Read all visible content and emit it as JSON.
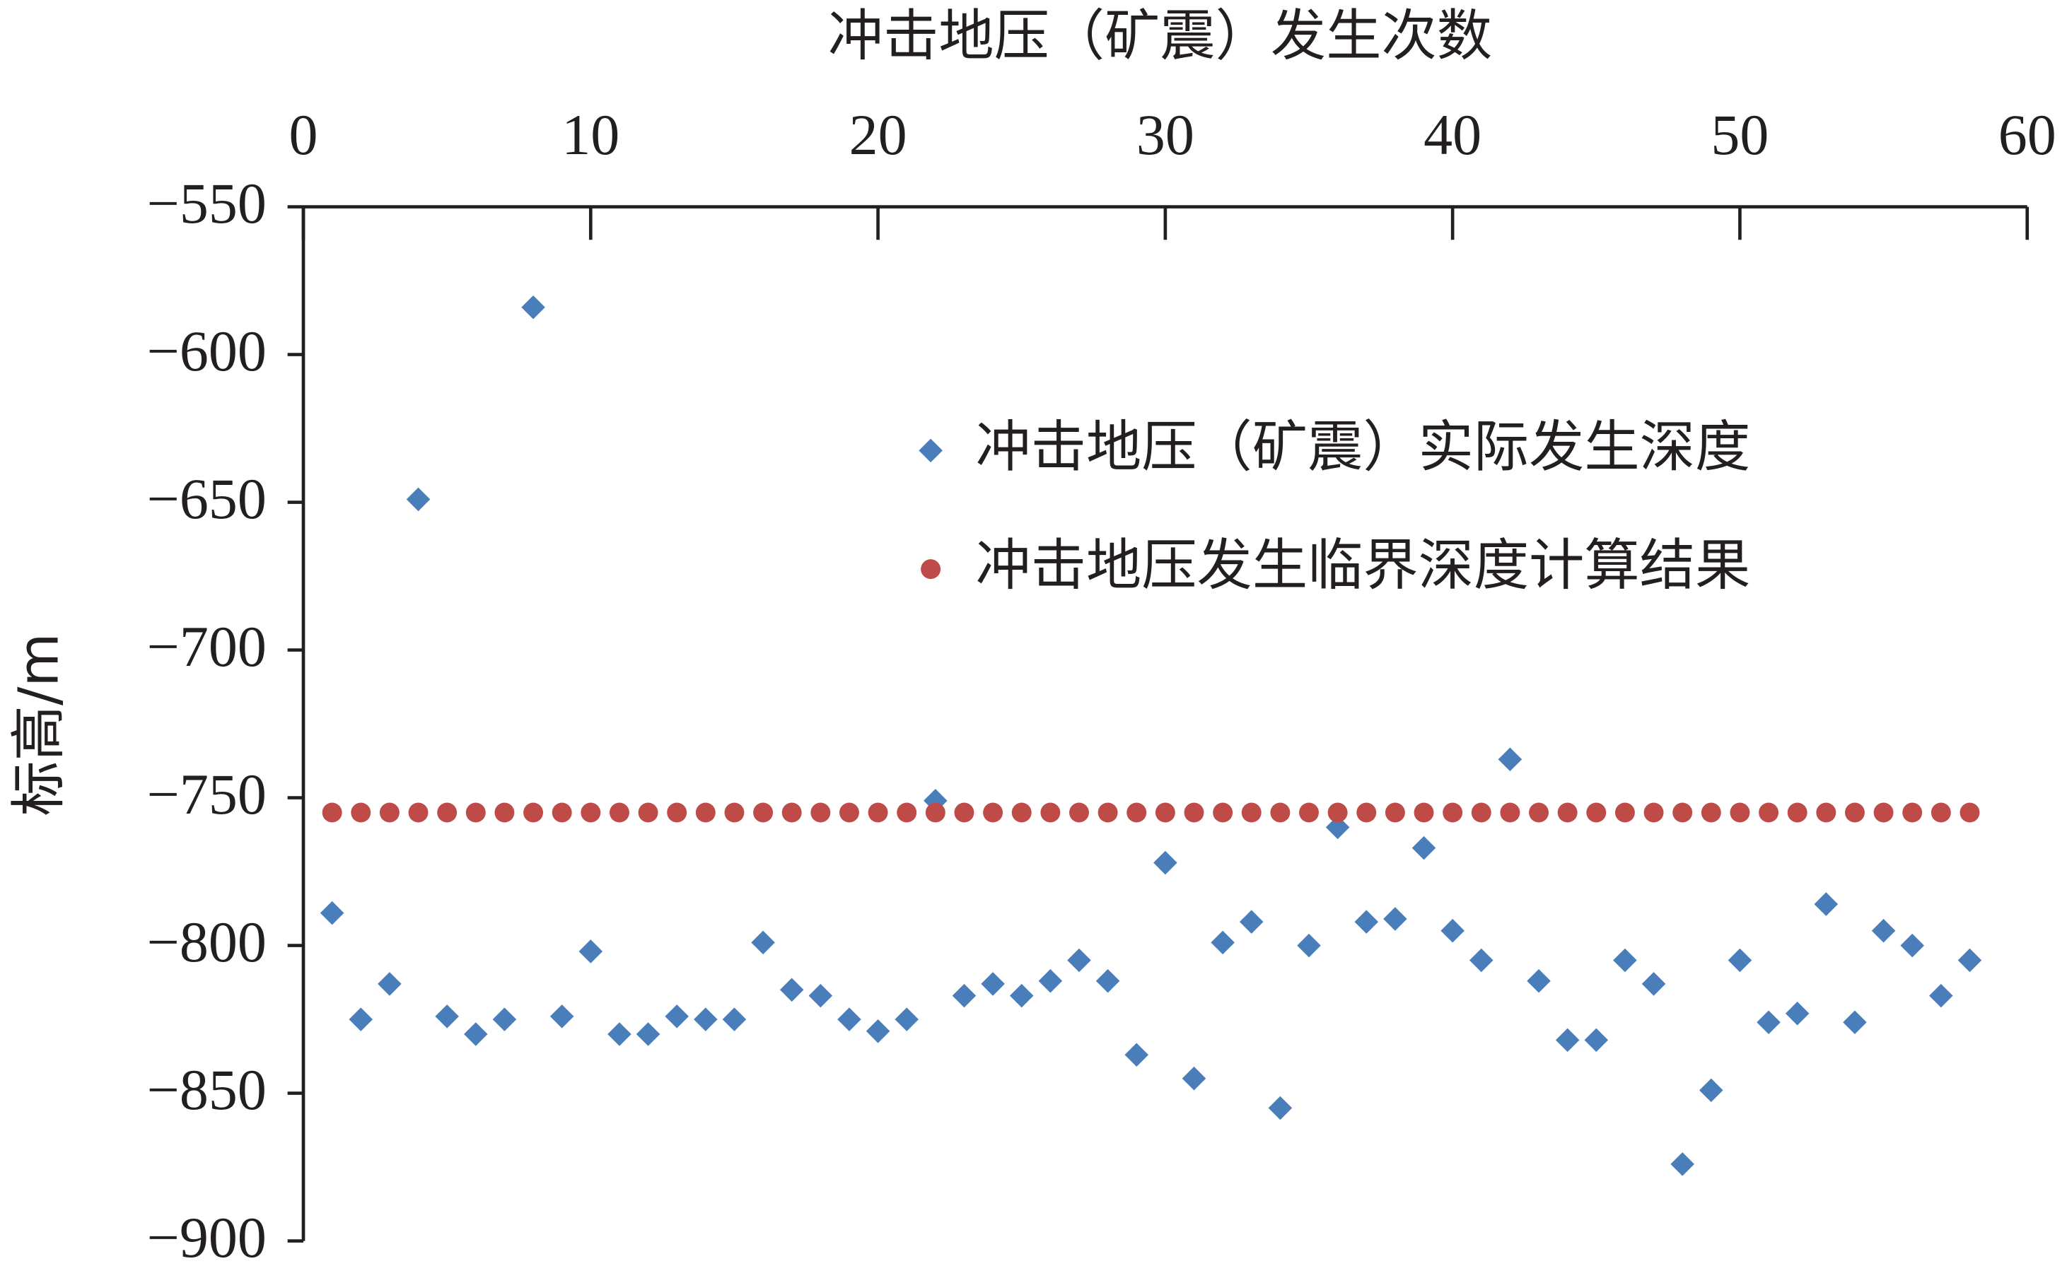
{
  "chart_data": {
    "type": "scatter",
    "title": "冲击地压（矿震）发生次数",
    "y_label": "标高/m",
    "x": [
      1,
      2,
      3,
      4,
      5,
      6,
      7,
      8,
      9,
      10,
      11,
      12,
      13,
      14,
      15,
      16,
      17,
      18,
      19,
      20,
      21,
      22,
      23,
      24,
      25,
      26,
      27,
      28,
      29,
      30,
      31,
      32,
      33,
      34,
      35,
      36,
      37,
      38,
      39,
      40,
      41,
      42,
      43,
      44,
      45,
      46,
      47,
      48,
      49,
      50,
      51,
      52,
      53,
      54,
      55,
      56,
      57,
      58
    ],
    "series": [
      {
        "name": "冲击地压（矿震）实际发生深度",
        "color": "#4a7ebb",
        "marker": "diamond",
        "values": [
          -789,
          -825,
          -813,
          -649,
          -824,
          -830,
          -825,
          -584,
          -824,
          -802,
          -830,
          -830,
          -824,
          -825,
          -825,
          -799,
          -815,
          -817,
          -825,
          -829,
          -825,
          -751,
          -817,
          -813,
          -817,
          -812,
          -805,
          -812,
          -837,
          -772,
          -845,
          -799,
          -792,
          -855,
          -800,
          -760,
          -792,
          -791,
          -767,
          -795,
          -805,
          -737,
          -812,
          -832,
          -832,
          -805,
          -813,
          -874,
          -849,
          -805,
          -826,
          -823,
          -786,
          -826,
          -795,
          -800,
          -817,
          -805
        ]
      },
      {
        "name": "冲击地压发生临界深度计算结果",
        "color": "#be4b48",
        "marker": "circle",
        "values": [
          -755,
          -755,
          -755,
          -755,
          -755,
          -755,
          -755,
          -755,
          -755,
          -755,
          -755,
          -755,
          -755,
          -755,
          -755,
          -755,
          -755,
          -755,
          -755,
          -755,
          -755,
          -755,
          -755,
          -755,
          -755,
          -755,
          -755,
          -755,
          -755,
          -755,
          -755,
          -755,
          -755,
          -755,
          -755,
          -755,
          -755,
          -755,
          -755,
          -755,
          -755,
          -755,
          -755,
          -755,
          -755,
          -755,
          -755,
          -755,
          -755,
          -755,
          -755,
          -755,
          -755,
          -755,
          -755,
          -755,
          -755,
          -755
        ]
      }
    ],
    "xlim": [
      0,
      60
    ],
    "xticks": [
      0,
      10,
      20,
      30,
      40,
      50,
      60
    ],
    "ylim": [
      -550,
      -900
    ],
    "yticks": [
      {
        "value": -550,
        "label": "−550"
      },
      {
        "value": -600,
        "label": "−600"
      },
      {
        "value": -650,
        "label": "−650"
      },
      {
        "value": -700,
        "label": "−700"
      },
      {
        "value": -750,
        "label": "−750"
      },
      {
        "value": -800,
        "label": "−800"
      },
      {
        "value": -850,
        "label": "−850"
      },
      {
        "value": -900,
        "label": "−900"
      }
    ],
    "x_axis_position": "top",
    "legend": "upper right"
  }
}
